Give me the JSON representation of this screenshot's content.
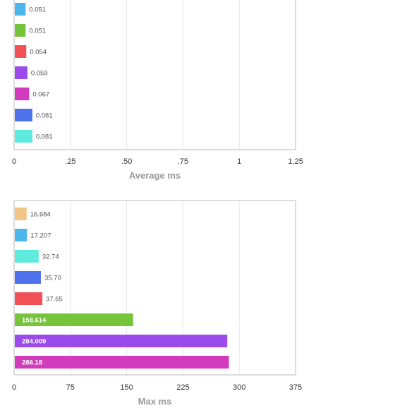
{
  "chart_data": [
    {
      "type": "bar",
      "orientation": "horizontal",
      "xlabel": "Average ms",
      "xlim": [
        0,
        1.25
      ],
      "ticks": [
        {
          "value": 0,
          "label": "0"
        },
        {
          "value": 0.25,
          "label": ".25"
        },
        {
          "value": 0.5,
          "label": ".50"
        },
        {
          "value": 0.75,
          "label": ".75"
        },
        {
          "value": 1,
          "label": "1"
        },
        {
          "value": 1.25,
          "label": "1.25"
        }
      ],
      "grid": true,
      "bars": [
        {
          "value": 0.051,
          "label": "0.051",
          "color": "#4db6ea"
        },
        {
          "value": 0.051,
          "label": "0.051",
          "color": "#76c43a"
        },
        {
          "value": 0.054,
          "label": "0.054",
          "color": "#ef5157"
        },
        {
          "value": 0.059,
          "label": "0.059",
          "color": "#9b4bec"
        },
        {
          "value": 0.067,
          "label": "0.067",
          "color": "#d23bbb"
        },
        {
          "value": 0.081,
          "label": "0.081",
          "color": "#4d72ec"
        },
        {
          "value": 0.081,
          "label": "0.081",
          "color": "#5eeadc"
        }
      ]
    },
    {
      "type": "bar",
      "orientation": "horizontal",
      "xlabel": "Max ms",
      "xlim": [
        0,
        375
      ],
      "ticks": [
        {
          "value": 0,
          "label": "0"
        },
        {
          "value": 75,
          "label": "75"
        },
        {
          "value": 150,
          "label": "150"
        },
        {
          "value": 225,
          "label": "225"
        },
        {
          "value": 300,
          "label": "300"
        },
        {
          "value": 375,
          "label": "375"
        }
      ],
      "grid": true,
      "bars": [
        {
          "value": 16.684,
          "label": "16.684",
          "color": "#f1c585"
        },
        {
          "value": 17.207,
          "label": "17.207",
          "color": "#4db6ea"
        },
        {
          "value": 32.74,
          "label": "32.74",
          "color": "#5eeadc"
        },
        {
          "value": 35.7,
          "label": "35.70",
          "color": "#4d72ec"
        },
        {
          "value": 37.65,
          "label": "37.65",
          "color": "#ef5157"
        },
        {
          "value": 158.614,
          "label": "158.614",
          "color": "#76c43a"
        },
        {
          "value": 284.009,
          "label": "284.009",
          "color": "#9b4bec"
        },
        {
          "value": 286.18,
          "label": "286.18",
          "color": "#d23bbb"
        }
      ]
    }
  ]
}
